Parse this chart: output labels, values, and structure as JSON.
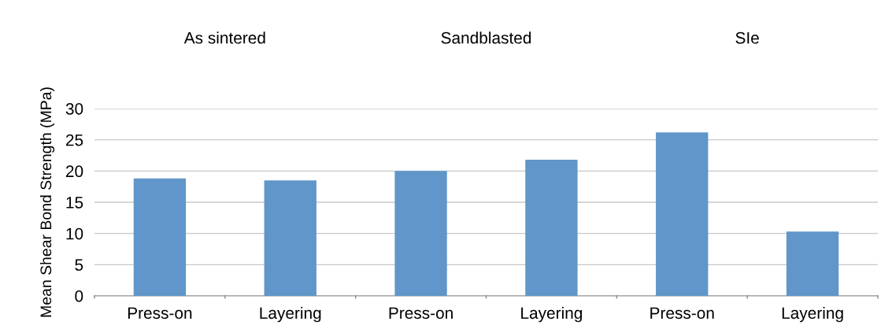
{
  "chart_data": {
    "type": "bar",
    "ylabel": "Mean Shear Bond Strength (MPa)",
    "categories": [
      "Press-on",
      "Layering",
      "Press-on",
      "Layering",
      "Press-on",
      "Layering"
    ],
    "values": [
      18.8,
      18.5,
      20.0,
      21.8,
      26.2,
      10.3
    ],
    "color": "#6096c9",
    "ylim": [
      0,
      30
    ],
    "yticks": [
      0,
      5,
      10,
      15,
      20,
      25,
      30
    ],
    "grid": "y",
    "annotations": [
      "As sintered",
      "Sandblasted",
      "SIe"
    ]
  }
}
